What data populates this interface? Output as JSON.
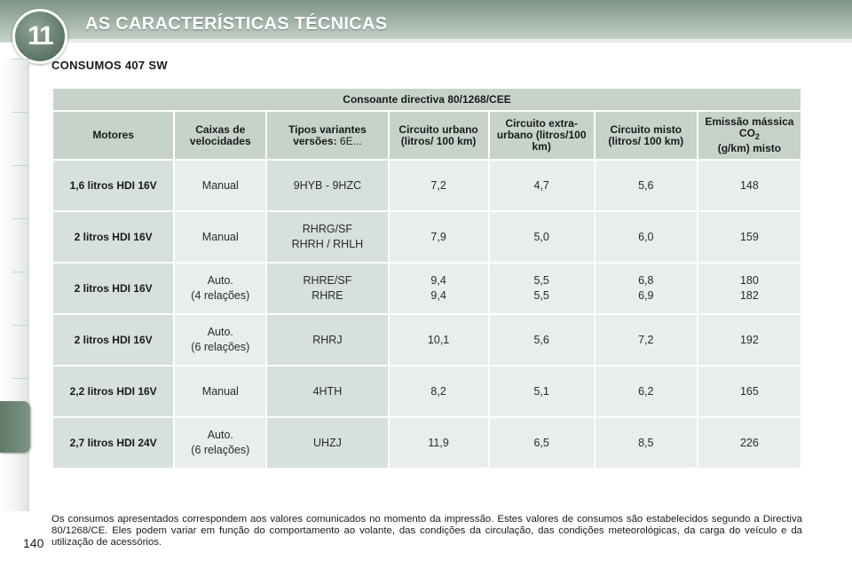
{
  "header": {
    "chapter_number": "11",
    "chapter_title": "AS CARACTERÍSTICAS TÉCNICAS"
  },
  "section_title": "CONSUMOS 407 SW",
  "table": {
    "caption": "Consoante directiva 80/1268/CEE",
    "columns": {
      "engine": "Motores",
      "gearbox": "Caixas de velocidades",
      "variants_label": "Tipos variantes versões:",
      "variants_suffix": "6E...",
      "urban": "Circuito urbano (litros/ 100 km)",
      "extra_urban": "Circuito extra-urbano (litros/100 km)",
      "mixed": "Circuito misto (litros/ 100 km)",
      "co2_prefix": "Emissão mássica CO",
      "co2_sub": "2",
      "co2_suffix": "(g/km) misto"
    },
    "rows": [
      {
        "engine": "1,6 litros HDI 16V",
        "gearbox": [
          "Manual"
        ],
        "variants": [
          "9HYB - 9HZC"
        ],
        "urban": [
          "7,2"
        ],
        "extra_urban": [
          "4,7"
        ],
        "mixed": [
          "5,6"
        ],
        "co2": [
          "148"
        ]
      },
      {
        "engine": "2 litros HDI 16V",
        "gearbox": [
          "Manual"
        ],
        "variants": [
          "RHRG/SF",
          "RHRH / RHLH"
        ],
        "urban": [
          "7,9"
        ],
        "extra_urban": [
          "5,0"
        ],
        "mixed": [
          "6,0"
        ],
        "co2": [
          "159"
        ]
      },
      {
        "engine": "2 litros HDI 16V",
        "gearbox": [
          "Auto.",
          "(4 relações)"
        ],
        "variants": [
          "RHRE/SF",
          "RHRE"
        ],
        "urban": [
          "9,4",
          "9,4"
        ],
        "extra_urban": [
          "5,5",
          "5,5"
        ],
        "mixed": [
          "6,8",
          "6,9"
        ],
        "co2": [
          "180",
          "182"
        ]
      },
      {
        "engine": "2 litros HDI 16V",
        "gearbox": [
          "Auto.",
          "(6 relações)"
        ],
        "variants": [
          "RHRJ"
        ],
        "urban": [
          "10,1"
        ],
        "extra_urban": [
          "5,6"
        ],
        "mixed": [
          "7,2"
        ],
        "co2": [
          "192"
        ]
      },
      {
        "engine": "2,2 litros HDI 16V",
        "gearbox": [
          "Manual"
        ],
        "variants": [
          "4HTH"
        ],
        "urban": [
          "8,2"
        ],
        "extra_urban": [
          "5,1"
        ],
        "mixed": [
          "6,2"
        ],
        "co2": [
          "165"
        ]
      },
      {
        "engine": "2,7 litros HDI 24V",
        "gearbox": [
          "Auto.",
          "(6 relações)"
        ],
        "variants": [
          "UHZJ"
        ],
        "urban": [
          "11,9"
        ],
        "extra_urban": [
          "6,5"
        ],
        "mixed": [
          "8,5"
        ],
        "co2": [
          "226"
        ]
      }
    ]
  },
  "note": "Os consumos apresentados correspondem aos valores comunicados no momento da impressão. Estes valores de consumos são estabelecidos segundo a Directiva 80/1268/CE. Eles podem variar em função do comportamento ao volante, das condições da circulação, das condições meteorológicas, da carga do veículo e da utilização de acessórios.",
  "page_number": "140"
}
